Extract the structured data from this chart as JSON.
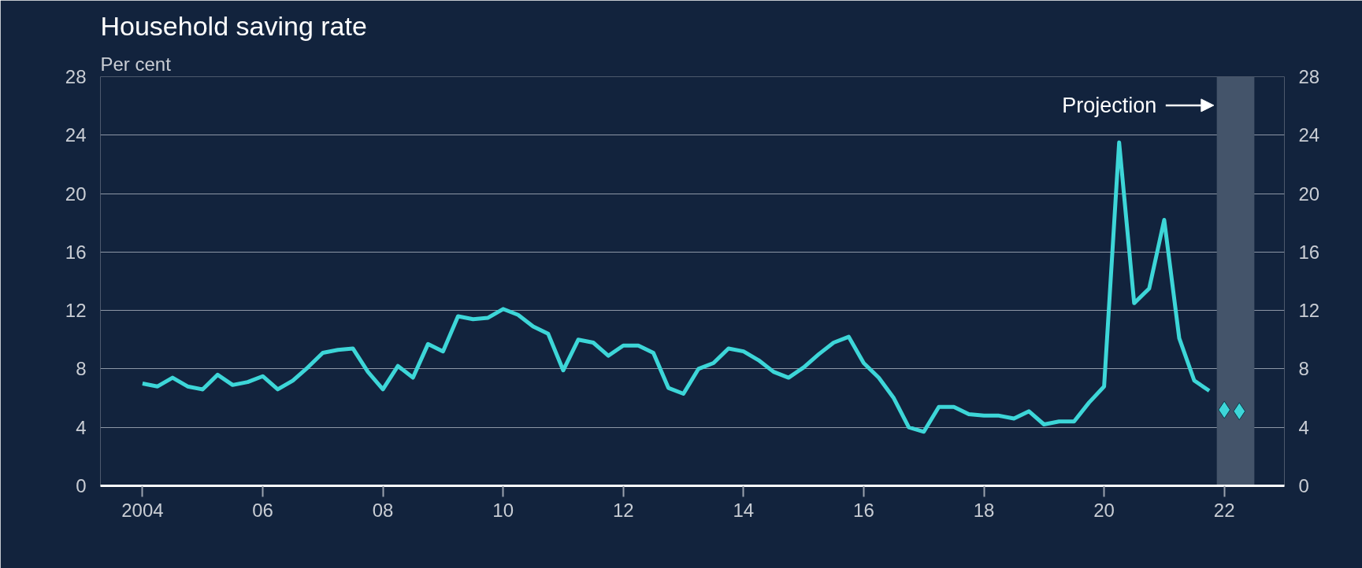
{
  "chart_data": {
    "type": "line",
    "title": "Household saving rate",
    "ylabel": "Per cent",
    "x": [
      2004,
      2004.25,
      2004.5,
      2004.75,
      2005,
      2005.25,
      2005.5,
      2005.75,
      2006,
      2006.25,
      2006.5,
      2006.75,
      2007,
      2007.25,
      2007.5,
      2007.75,
      2008,
      2008.25,
      2008.5,
      2008.75,
      2009,
      2009.25,
      2009.5,
      2009.75,
      2010,
      2010.25,
      2010.5,
      2010.75,
      2011,
      2011.25,
      2011.5,
      2011.75,
      2012,
      2012.25,
      2012.5,
      2012.75,
      2013,
      2013.25,
      2013.5,
      2013.75,
      2014,
      2014.25,
      2014.5,
      2014.75,
      2015,
      2015.25,
      2015.5,
      2015.75,
      2016,
      2016.25,
      2016.5,
      2016.75,
      2017,
      2017.25,
      2017.5,
      2017.75,
      2018,
      2018.25,
      2018.5,
      2018.75,
      2019,
      2019.25,
      2019.5,
      2019.75,
      2020,
      2020.25,
      2020.5,
      2020.75,
      2021,
      2021.25,
      2021.5,
      2021.75
    ],
    "series": [
      {
        "color": "#3dd6d8",
        "values": [
          7.0,
          6.8,
          7.4,
          6.8,
          6.6,
          7.6,
          6.9,
          7.1,
          7.5,
          6.6,
          7.2,
          8.1,
          9.1,
          9.3,
          9.4,
          7.8,
          6.6,
          8.2,
          7.4,
          9.7,
          9.2,
          11.6,
          11.4,
          11.5,
          12.1,
          11.7,
          10.9,
          10.4,
          7.9,
          10.0,
          9.8,
          8.9,
          9.6,
          9.6,
          9.1,
          6.7,
          6.3,
          8.0,
          8.4,
          9.4,
          9.2,
          8.6,
          7.8,
          7.4,
          8.1,
          9.0,
          9.8,
          10.2,
          8.4,
          7.4,
          6.0,
          4.0,
          3.7,
          5.4,
          5.4,
          4.9,
          4.8,
          4.8,
          4.6,
          5.1,
          4.2,
          4.4,
          4.4,
          5.7,
          6.8,
          23.5,
          12.5,
          13.5,
          18.2,
          10.1,
          7.2,
          6.5
        ]
      },
      {
        "type": "scatter",
        "marker": "diamond",
        "color": "#3dd6d8",
        "x": [
          2022,
          2022.25
        ],
        "values": [
          5.2,
          5.1
        ]
      }
    ],
    "xlim": [
      2003.3,
      2023.0
    ],
    "xticks": [
      2004,
      {
        "value": 2006,
        "label": "06"
      },
      {
        "value": 2008,
        "label": "08"
      },
      {
        "value": 2010,
        "label": "10"
      },
      {
        "value": 2012,
        "label": "12"
      },
      {
        "value": 2014,
        "label": "14"
      },
      {
        "value": 2016,
        "label": "16"
      },
      {
        "value": 2018,
        "label": "18"
      },
      {
        "value": 2020,
        "label": "20"
      },
      {
        "value": 2022,
        "label": "22"
      }
    ],
    "ylim": [
      0,
      28
    ],
    "yticks": [
      0,
      4,
      8,
      12,
      16,
      20,
      24,
      28
    ],
    "y2lim": [
      0,
      28
    ],
    "y2ticks": [
      0,
      4,
      8,
      12,
      16,
      20,
      24,
      28
    ],
    "grid": "y",
    "bands": [
      {
        "axis": "x",
        "from": 2021.875,
        "to": 2022.5,
        "label": "Projection",
        "color": "#44546a"
      }
    ]
  }
}
